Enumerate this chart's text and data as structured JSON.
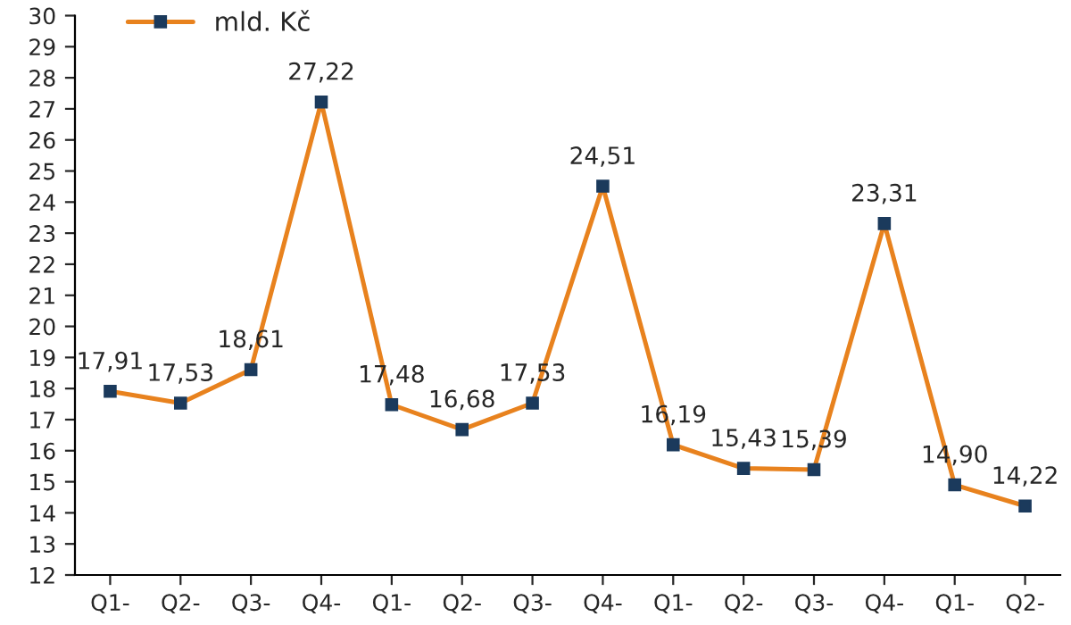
{
  "chart_data": {
    "type": "line",
    "categories": [
      "Q1-",
      "Q2-",
      "Q3-",
      "Q4-",
      "Q1-",
      "Q2-",
      "Q3-",
      "Q4-",
      "Q1-",
      "Q2-",
      "Q3-",
      "Q4-",
      "Q1-",
      "Q2-"
    ],
    "series": [
      {
        "name": "mld. Kč",
        "color": "#e8821e",
        "values": [
          17.91,
          17.53,
          18.61,
          27.22,
          17.48,
          16.68,
          17.53,
          24.51,
          16.19,
          15.43,
          15.39,
          23.31,
          14.9,
          14.22
        ],
        "value_labels": [
          "17,91",
          "17,53",
          "18,61",
          "27,22",
          "17,48",
          "16,68",
          "17,53",
          "24,51",
          "16,19",
          "15,43",
          "15,39",
          "23,31",
          "14,90",
          "14,22"
        ]
      }
    ],
    "ylim": [
      12,
      30
    ],
    "yticks": [
      12,
      13,
      14,
      15,
      16,
      17,
      18,
      19,
      20,
      21,
      22,
      23,
      24,
      25,
      26,
      27,
      28,
      29,
      30
    ],
    "grid": false,
    "legend": "top left",
    "marker": "square",
    "line_style": "solid"
  }
}
